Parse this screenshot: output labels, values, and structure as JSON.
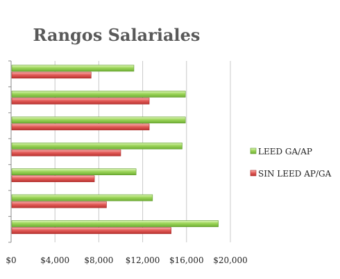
{
  "chart_data": {
    "type": "bar",
    "orientation": "horizontal",
    "title": "Rangos Salariales",
    "xlabel": "",
    "ylabel": "",
    "xlim": [
      0,
      20000
    ],
    "x_ticks": [
      0,
      4000,
      8000,
      12000,
      16000,
      20000
    ],
    "x_tick_labels": [
      "$0",
      "$4,000",
      "$8,000",
      "$12,000",
      "$16,000",
      "$20,000"
    ],
    "grid": true,
    "legend_position": "right",
    "category_count": 7,
    "series": [
      {
        "name": "LEED GA/AP",
        "color": "#8ccf4a",
        "values": [
          11200,
          15900,
          15900,
          15600,
          11400,
          12900,
          18900
        ]
      },
      {
        "name": "SIN LEED AP/GA",
        "color": "#e25553",
        "values": [
          7300,
          12600,
          12600,
          10000,
          7600,
          8700,
          14600
        ]
      }
    ]
  }
}
